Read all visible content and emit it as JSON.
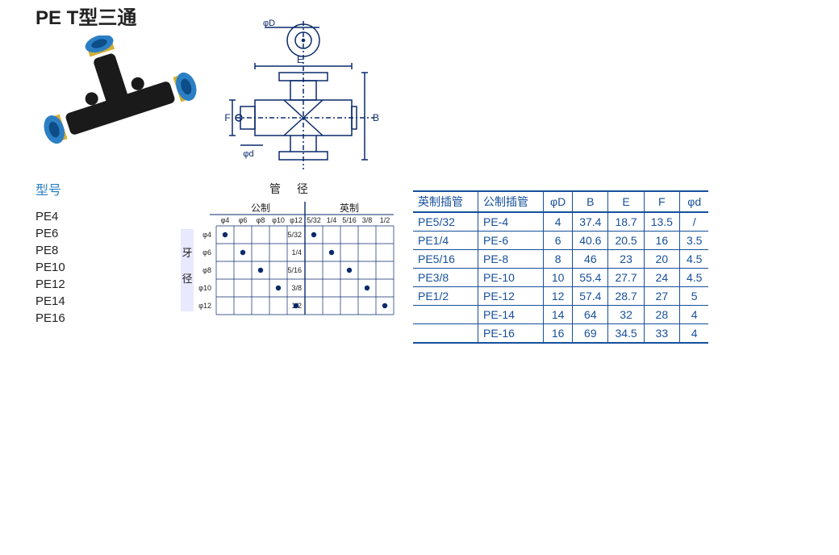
{
  "title_prefix": "PE T",
  "title_suffix": "型三通",
  "model_label": "型号",
  "models": [
    "PE4",
    "PE6",
    "PE8",
    "PE10",
    "PE12",
    "PE14",
    "PE16"
  ],
  "diagram": {
    "labels": {
      "phiD": "φD",
      "phid": "φd",
      "E": "E",
      "B": "B",
      "F": "F"
    },
    "stroke": "#0a2a6b"
  },
  "product_colors": {
    "body": "#1a1a1a",
    "collar": "#2b7fc4",
    "ring": "#d4af37"
  },
  "compat": {
    "title": "管  径",
    "side_label_1": "牙",
    "side_label_2": "径",
    "metric_label": "公制",
    "imperial_label": "英制",
    "metric_cols": [
      "φ4",
      "φ6",
      "φ8",
      "φ10",
      "φ12"
    ],
    "imperial_cols": [
      "5/32",
      "1/4",
      "5/16",
      "3/8",
      "1/2"
    ],
    "row_labels": [
      "φ4",
      "φ6",
      "φ8",
      "φ10",
      "φ12"
    ],
    "imp_row_labels": [
      "5/32",
      "1/4",
      "5/16",
      "3/8",
      "1/2"
    ],
    "dots": [
      {
        "r": 0,
        "c": 0
      },
      {
        "r": 1,
        "c": 1
      },
      {
        "r": 2,
        "c": 2
      },
      {
        "r": 3,
        "c": 3
      },
      {
        "r": 4,
        "c": 4
      },
      {
        "r": 0,
        "c": 5
      },
      {
        "r": 1,
        "c": 6
      },
      {
        "r": 2,
        "c": 7
      },
      {
        "r": 3,
        "c": 8
      },
      {
        "r": 4,
        "c": 9
      }
    ],
    "grid_color": "#0a2a6b",
    "bg_color": "#e8e8ff"
  },
  "spec": {
    "headers": [
      "英制插管",
      "公制插管",
      "φD",
      "B",
      "E",
      "F",
      "φd"
    ],
    "rows": [
      [
        "PE5/32",
        "PE-4",
        "4",
        "37.4",
        "18.7",
        "13.5",
        "/"
      ],
      [
        "PE1/4",
        "PE-6",
        "6",
        "40.6",
        "20.5",
        "16",
        "3.5"
      ],
      [
        "PE5/16",
        "PE-8",
        "8",
        "46",
        "23",
        "20",
        "4.5"
      ],
      [
        "PE3/8",
        "PE-10",
        "10",
        "55.4",
        "27.7",
        "24",
        "4.5"
      ],
      [
        "PE1/2",
        "PE-12",
        "12",
        "57.4",
        "28.7",
        "27",
        "5"
      ],
      [
        "",
        "PE-14",
        "14",
        "64",
        "32",
        "28",
        "4"
      ],
      [
        "",
        "PE-16",
        "16",
        "69",
        "34.5",
        "33",
        "4"
      ]
    ],
    "border_color": "#164f9c",
    "text_color": "#164f9c"
  }
}
